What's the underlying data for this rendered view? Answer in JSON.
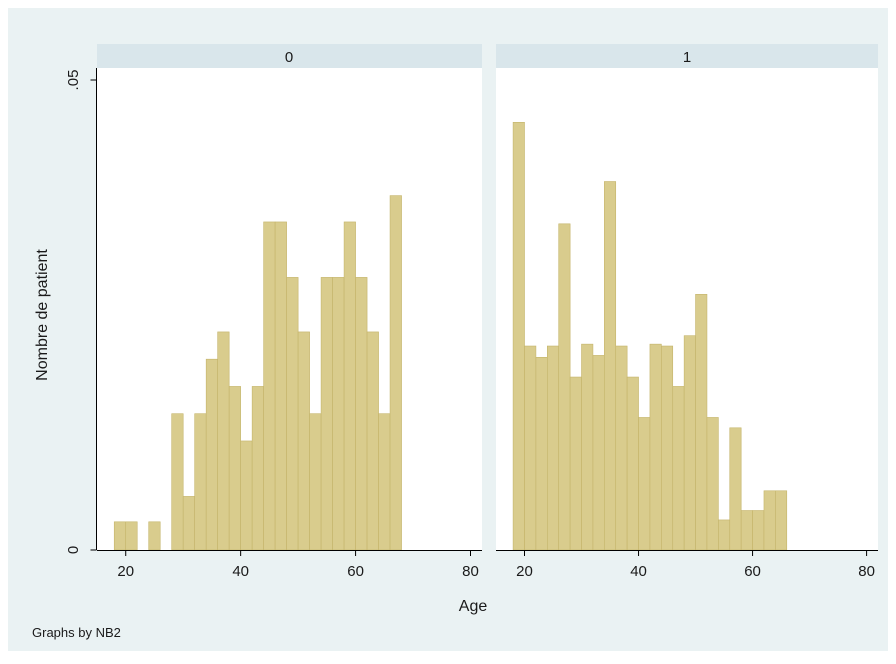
{
  "colors": {
    "outer_bg": "#eaf2f3",
    "plot_bg": "#ffffff",
    "header_bg": "#d9e6eb",
    "bar_fill": "#d9cc8d",
    "bar_stroke": "#c4b46a",
    "axis": "#000000"
  },
  "note": "Graphs by NB2",
  "chart_data": {
    "type": "bar",
    "ylabel": "Nombre de patient",
    "xlabel": "Age",
    "ylim": [
      0,
      0.05
    ],
    "xlim": [
      15,
      82
    ],
    "ytick_labels": [
      "0",
      ".05"
    ],
    "yticks": [
      0,
      0.05
    ],
    "xticks": [
      20,
      40,
      60,
      80
    ],
    "xtick_labels": [
      "20",
      "40",
      "60",
      "80"
    ],
    "bin_width": 2,
    "grid": false,
    "panels": [
      {
        "label": "0",
        "bars": [
          {
            "x": 19,
            "y": 0.003
          },
          {
            "x": 21,
            "y": 0.003
          },
          {
            "x": 25,
            "y": 0.003
          },
          {
            "x": 29,
            "y": 0.0145
          },
          {
            "x": 31,
            "y": 0.0057
          },
          {
            "x": 33,
            "y": 0.0145
          },
          {
            "x": 35,
            "y": 0.0203
          },
          {
            "x": 37,
            "y": 0.0232
          },
          {
            "x": 39,
            "y": 0.0174
          },
          {
            "x": 41,
            "y": 0.0116
          },
          {
            "x": 43,
            "y": 0.0174
          },
          {
            "x": 45,
            "y": 0.0349
          },
          {
            "x": 47,
            "y": 0.0349
          },
          {
            "x": 49,
            "y": 0.029
          },
          {
            "x": 51,
            "y": 0.0232
          },
          {
            "x": 53,
            "y": 0.0145
          },
          {
            "x": 55,
            "y": 0.029
          },
          {
            "x": 57,
            "y": 0.029
          },
          {
            "x": 59,
            "y": 0.0349
          },
          {
            "x": 61,
            "y": 0.029
          },
          {
            "x": 63,
            "y": 0.0232
          },
          {
            "x": 65,
            "y": 0.0145
          },
          {
            "x": 67,
            "y": 0.0377
          }
        ]
      },
      {
        "label": "1",
        "bars": [
          {
            "x": 19,
            "y": 0.0455
          },
          {
            "x": 21,
            "y": 0.0217
          },
          {
            "x": 23,
            "y": 0.0205
          },
          {
            "x": 25,
            "y": 0.0217
          },
          {
            "x": 27,
            "y": 0.0347
          },
          {
            "x": 29,
            "y": 0.0184
          },
          {
            "x": 31,
            "y": 0.0219
          },
          {
            "x": 33,
            "y": 0.0207
          },
          {
            "x": 35,
            "y": 0.0392
          },
          {
            "x": 37,
            "y": 0.0217
          },
          {
            "x": 39,
            "y": 0.0184
          },
          {
            "x": 41,
            "y": 0.0141
          },
          {
            "x": 43,
            "y": 0.0219
          },
          {
            "x": 45,
            "y": 0.0217
          },
          {
            "x": 47,
            "y": 0.0174
          },
          {
            "x": 49,
            "y": 0.0228
          },
          {
            "x": 51,
            "y": 0.0272
          },
          {
            "x": 53,
            "y": 0.0141
          },
          {
            "x": 55,
            "y": 0.0032
          },
          {
            "x": 57,
            "y": 0.013
          },
          {
            "x": 59,
            "y": 0.0042
          },
          {
            "x": 61,
            "y": 0.0042
          },
          {
            "x": 63,
            "y": 0.0063
          },
          {
            "x": 65,
            "y": 0.0063
          }
        ]
      }
    ]
  }
}
